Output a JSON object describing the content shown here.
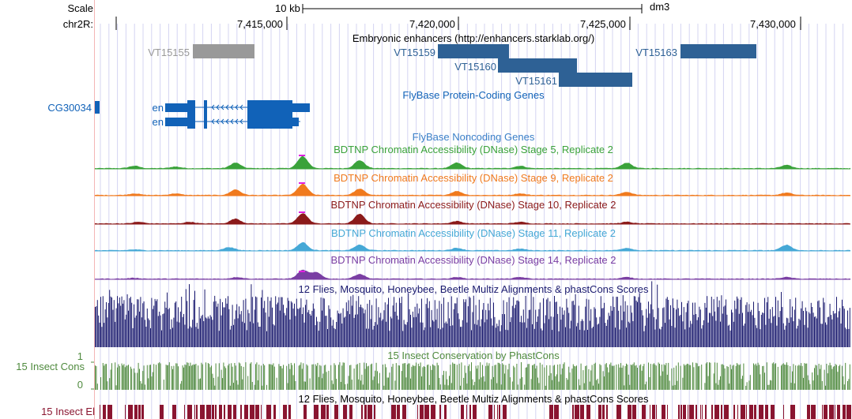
{
  "browser": {
    "scale_label": "Scale",
    "scale_value": "10 kb",
    "assembly": "dm3",
    "chrom_label": "chr2R:",
    "ruler_ticks": [
      "7,415,000",
      "7,420,000",
      "7,425,000",
      "7,430,000"
    ]
  },
  "tracks": {
    "enhancers": {
      "title": "Embryonic enhancers (http://enhancers.starklab.org/)",
      "items": [
        {
          "name": "VT15155",
          "color": "#999999"
        },
        {
          "name": "VT15159",
          "color": "#2e6195"
        },
        {
          "name": "VT15160",
          "color": "#2e6195"
        },
        {
          "name": "VT15161",
          "color": "#2e6195"
        },
        {
          "name": "VT15163",
          "color": "#2e6195"
        }
      ]
    },
    "genes": {
      "title": "FlyBase Protein-Coding Genes",
      "color": "#1162b8",
      "items": [
        {
          "name": "CG30034"
        },
        {
          "name": "en"
        },
        {
          "name": "en"
        }
      ]
    },
    "noncoding": {
      "title": "FlyBase Noncoding Genes",
      "color": "#3a7fc8"
    },
    "dnase": [
      {
        "title": "BDTNP Chromatin Accessibility (DNase) Stage 5, Replicate 2",
        "color": "#3aa23a"
      },
      {
        "title": "BDTNP Chromatin Accessibility (DNase) Stage 9, Replicate 2",
        "color": "#f07a1e"
      },
      {
        "title": "BDTNP Chromatin Accessibility (DNase) Stage 10, Replicate 2",
        "color": "#8b1a1a"
      },
      {
        "title": "BDTNP Chromatin Accessibility (DNase) Stage 11, Replicate 2",
        "color": "#45a8d6"
      },
      {
        "title": "BDTNP Chromatin Accessibility (DNase) Stage 14, Replicate 2",
        "color": "#7a3ea3"
      }
    ],
    "multiz": {
      "title": "12 Flies, Mosquito, Honeybee, Beetle Multiz Alignments & phastCons Scores",
      "color": "#1a1a6e"
    },
    "phastcons": {
      "title": "15 Insect Conservation by PhastCons",
      "left_label": "15 Insect Cons",
      "axis_max": "1",
      "axis_min": "0",
      "color": "#4f8a3e"
    },
    "elements": {
      "title": "12 Flies, Mosquito, Honeybee, Beetle Multiz Alignments & phastCons Scores",
      "left_label": "15 Insect El",
      "color": "#8a1530"
    }
  },
  "colors": {
    "grid": "#d4d4f2",
    "peak_highlight": "#e020e0"
  }
}
